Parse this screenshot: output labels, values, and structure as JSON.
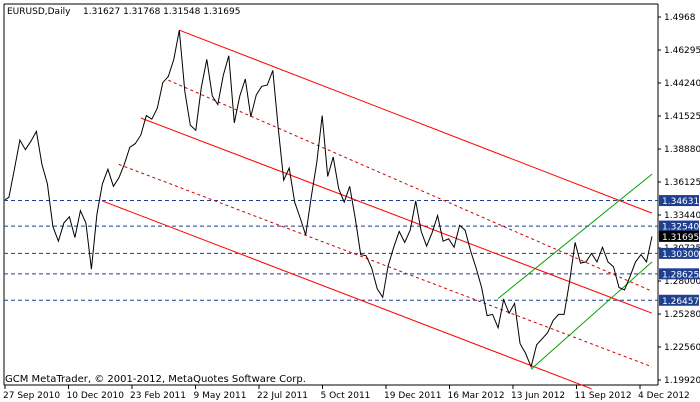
{
  "header": {
    "symbol": "EURUSD,Daily",
    "ohlc": "1.31627 1.31768 1.31548 1.31695"
  },
  "footer": {
    "copyright": "GCM MetaTrader, © 2001-2012, MetaQuotes Software Corp."
  },
  "colors": {
    "background": "#ffffff",
    "price_line": "#000000",
    "channel_red": "#ff0000",
    "channel_red_dash": "#cc0000",
    "channel_green": "#00a000",
    "hline_blue": "#1f3f8f",
    "badge_blue": "#1f3f8f",
    "badge_black": "#000000"
  },
  "y_axis": {
    "ticks": [
      "1.4968",
      "1.46295",
      "1.44240",
      "1.41525",
      "1.38880",
      "1.36125",
      "1.33440",
      "1.30725",
      "1.28000",
      "1.25280",
      "1.22560",
      "1.19920"
    ],
    "levels": [
      {
        "label": "1.34631",
        "value": 1.34631,
        "style": "blue"
      },
      {
        "label": "1.32540",
        "value": 1.3254,
        "style": "blue"
      },
      {
        "label": "1.31695",
        "value": 1.31695,
        "style": "black"
      },
      {
        "label": "1.30300",
        "value": 1.303,
        "style": "blue"
      },
      {
        "label": "1.28625",
        "value": 1.28625,
        "style": "blue"
      },
      {
        "label": "1.26457",
        "value": 1.26457,
        "style": "blue"
      }
    ],
    "top_value": 1.4968,
    "bottom_value": 1.1992
  },
  "x_axis": {
    "labels": [
      "27 Sep 2010",
      "10 Dec 2010",
      "23 Feb 2011",
      "9 May 2011",
      "22 Jul 2011",
      "5 Oct 2011",
      "19 Dec 2011",
      "16 Mar 2012",
      "13 Jun 2012",
      "11 Sep 2012",
      "4 Dec 2012"
    ]
  },
  "chart_data": {
    "type": "line",
    "instrument": "EURUSD",
    "timeframe": "Daily",
    "last_price": 1.31695,
    "close_series": [
      [
        "2010-09-22",
        1.347
      ],
      [
        "2010-09-27",
        1.349
      ],
      [
        "2010-10-04",
        1.372
      ],
      [
        "2010-10-11",
        1.396
      ],
      [
        "2010-10-18",
        1.388
      ],
      [
        "2010-10-25",
        1.395
      ],
      [
        "2010-11-01",
        1.403
      ],
      [
        "2010-11-08",
        1.376
      ],
      [
        "2010-11-15",
        1.36
      ],
      [
        "2010-11-22",
        1.325
      ],
      [
        "2010-11-29",
        1.313
      ],
      [
        "2010-12-06",
        1.328
      ],
      [
        "2010-12-13",
        1.333
      ],
      [
        "2010-12-20",
        1.316
      ],
      [
        "2010-12-27",
        1.338
      ],
      [
        "2011-01-03",
        1.328
      ],
      [
        "2011-01-10",
        1.29
      ],
      [
        "2011-01-17",
        1.335
      ],
      [
        "2011-01-24",
        1.36
      ],
      [
        "2011-01-31",
        1.372
      ],
      [
        "2011-02-07",
        1.358
      ],
      [
        "2011-02-14",
        1.365
      ],
      [
        "2011-02-21",
        1.376
      ],
      [
        "2011-02-28",
        1.39
      ],
      [
        "2011-03-07",
        1.393
      ],
      [
        "2011-03-14",
        1.4
      ],
      [
        "2011-03-21",
        1.416
      ],
      [
        "2011-03-28",
        1.413
      ],
      [
        "2011-04-04",
        1.422
      ],
      [
        "2011-04-11",
        1.443
      ],
      [
        "2011-04-18",
        1.448
      ],
      [
        "2011-04-25",
        1.462
      ],
      [
        "2011-05-02",
        1.486
      ],
      [
        "2011-05-09",
        1.436
      ],
      [
        "2011-05-16",
        1.408
      ],
      [
        "2011-05-23",
        1.404
      ],
      [
        "2011-05-30",
        1.439
      ],
      [
        "2011-06-06",
        1.462
      ],
      [
        "2011-06-13",
        1.432
      ],
      [
        "2011-06-20",
        1.425
      ],
      [
        "2011-06-27",
        1.449
      ],
      [
        "2011-07-04",
        1.465
      ],
      [
        "2011-07-11",
        1.41
      ],
      [
        "2011-07-18",
        1.432
      ],
      [
        "2011-07-25",
        1.446
      ],
      [
        "2011-08-01",
        1.415
      ],
      [
        "2011-08-08",
        1.433
      ],
      [
        "2011-08-15",
        1.44
      ],
      [
        "2011-08-22",
        1.441
      ],
      [
        "2011-08-29",
        1.453
      ],
      [
        "2011-09-05",
        1.406
      ],
      [
        "2011-09-12",
        1.363
      ],
      [
        "2011-09-19",
        1.373
      ],
      [
        "2011-09-26",
        1.345
      ],
      [
        "2011-10-03",
        1.332
      ],
      [
        "2011-10-10",
        1.318
      ],
      [
        "2011-10-17",
        1.349
      ],
      [
        "2011-10-24",
        1.377
      ],
      [
        "2011-10-31",
        1.416
      ],
      [
        "2011-11-07",
        1.366
      ],
      [
        "2011-11-14",
        1.382
      ],
      [
        "2011-11-21",
        1.356
      ],
      [
        "2011-11-28",
        1.345
      ],
      [
        "2011-12-05",
        1.358
      ],
      [
        "2011-12-12",
        1.332
      ],
      [
        "2011-12-19",
        1.302
      ],
      [
        "2011-12-26",
        1.301
      ],
      [
        "2012-01-02",
        1.291
      ],
      [
        "2012-01-09",
        1.274
      ],
      [
        "2012-01-16",
        1.267
      ],
      [
        "2012-01-23",
        1.293
      ],
      [
        "2012-01-30",
        1.308
      ],
      [
        "2012-02-06",
        1.321
      ],
      [
        "2012-02-13",
        1.312
      ],
      [
        "2012-02-20",
        1.322
      ],
      [
        "2012-02-27",
        1.346
      ],
      [
        "2012-03-05",
        1.321
      ],
      [
        "2012-03-12",
        1.309
      ],
      [
        "2012-03-19",
        1.32
      ],
      [
        "2012-03-26",
        1.334
      ],
      [
        "2012-04-02",
        1.313
      ],
      [
        "2012-04-09",
        1.315
      ],
      [
        "2012-04-16",
        1.308
      ],
      [
        "2012-04-23",
        1.326
      ],
      [
        "2012-04-30",
        1.322
      ],
      [
        "2012-05-07",
        1.305
      ],
      [
        "2012-05-14",
        1.291
      ],
      [
        "2012-05-21",
        1.275
      ],
      [
        "2012-05-28",
        1.252
      ],
      [
        "2012-06-04",
        1.253
      ],
      [
        "2012-06-11",
        1.242
      ],
      [
        "2012-06-18",
        1.265
      ],
      [
        "2012-06-25",
        1.254
      ],
      [
        "2012-07-02",
        1.262
      ],
      [
        "2012-07-09",
        1.229
      ],
      [
        "2012-07-16",
        1.221
      ],
      [
        "2012-07-23",
        1.21
      ],
      [
        "2012-07-30",
        1.228
      ],
      [
        "2012-08-06",
        1.233
      ],
      [
        "2012-08-13",
        1.238
      ],
      [
        "2012-08-20",
        1.248
      ],
      [
        "2012-08-27",
        1.253
      ],
      [
        "2012-09-03",
        1.253
      ],
      [
        "2012-09-10",
        1.28
      ],
      [
        "2012-09-17",
        1.312
      ],
      [
        "2012-09-24",
        1.295
      ],
      [
        "2012-10-01",
        1.296
      ],
      [
        "2012-10-08",
        1.303
      ],
      [
        "2012-10-15",
        1.296
      ],
      [
        "2012-10-22",
        1.308
      ],
      [
        "2012-10-29",
        1.296
      ],
      [
        "2012-11-05",
        1.292
      ],
      [
        "2012-11-12",
        1.275
      ],
      [
        "2012-11-19",
        1.273
      ],
      [
        "2012-11-26",
        1.284
      ],
      [
        "2012-12-03",
        1.296
      ],
      [
        "2012-12-10",
        1.302
      ],
      [
        "2012-12-17",
        1.296
      ],
      [
        "2012-12-24",
        1.3169
      ]
    ]
  }
}
